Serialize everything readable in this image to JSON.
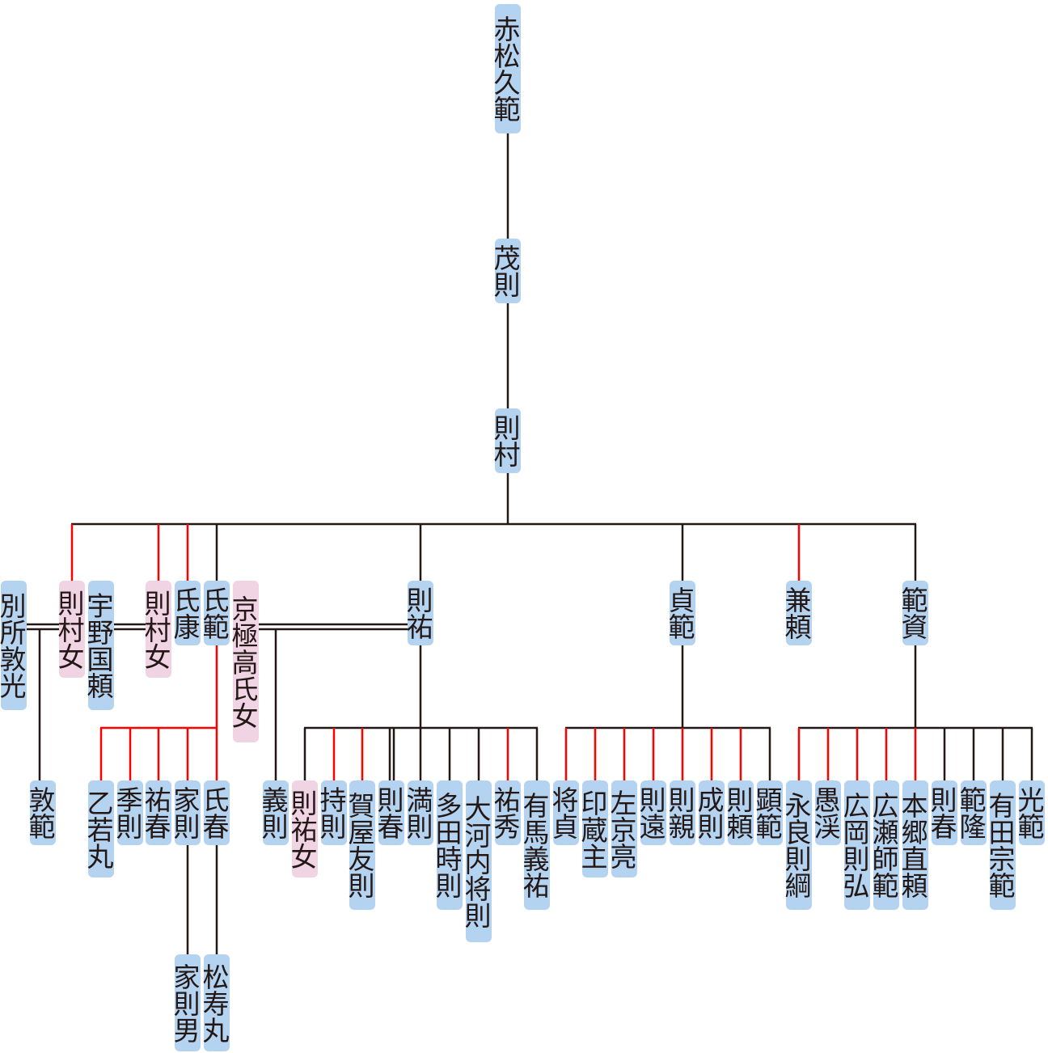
{
  "colors": {
    "male_bg": "#b4d3f0",
    "female_bg": "#f0d4e4",
    "line": "#231815",
    "line_red": "#ff0000"
  },
  "people": [
    {
      "id": "p1",
      "name": "赤松久範",
      "kind": "male"
    },
    {
      "id": "p2",
      "name": "茂則",
      "kind": "male"
    },
    {
      "id": "p3",
      "name": "則村",
      "kind": "male"
    },
    {
      "id": "p4",
      "name": "別所敦光",
      "kind": "male"
    },
    {
      "id": "p5",
      "name": "則村女",
      "kind": "female"
    },
    {
      "id": "p6",
      "name": "宇野国頼",
      "kind": "male"
    },
    {
      "id": "p7",
      "name": "則村女",
      "kind": "female"
    },
    {
      "id": "p8",
      "name": "氏康",
      "kind": "male"
    },
    {
      "id": "p9",
      "name": "氏範",
      "kind": "male"
    },
    {
      "id": "p10",
      "name": "京極高氏女",
      "kind": "female"
    },
    {
      "id": "p11",
      "name": "則祐",
      "kind": "male"
    },
    {
      "id": "p12",
      "name": "貞範",
      "kind": "male"
    },
    {
      "id": "p13",
      "name": "兼頼",
      "kind": "male"
    },
    {
      "id": "p14",
      "name": "範資",
      "kind": "male"
    },
    {
      "id": "p15",
      "name": "敦範",
      "kind": "male"
    },
    {
      "id": "p16",
      "name": "乙若丸",
      "kind": "male"
    },
    {
      "id": "p17",
      "name": "季則",
      "kind": "male"
    },
    {
      "id": "p18",
      "name": "祐春",
      "kind": "male"
    },
    {
      "id": "p19",
      "name": "家則",
      "kind": "male"
    },
    {
      "id": "p20",
      "name": "氏春",
      "kind": "male"
    },
    {
      "id": "p21",
      "name": "義則",
      "kind": "male"
    },
    {
      "id": "p22",
      "name": "則祐女",
      "kind": "female"
    },
    {
      "id": "p23",
      "name": "持則",
      "kind": "male"
    },
    {
      "id": "p24",
      "name": "賀屋友則",
      "kind": "male"
    },
    {
      "id": "p25",
      "name": "則春",
      "kind": "male"
    },
    {
      "id": "p26",
      "name": "満則",
      "kind": "male"
    },
    {
      "id": "p27",
      "name": "多田時則",
      "kind": "male"
    },
    {
      "id": "p28",
      "name": "大河内将則",
      "kind": "male"
    },
    {
      "id": "p29",
      "name": "祐秀",
      "kind": "male"
    },
    {
      "id": "p30",
      "name": "有馬義祐",
      "kind": "male"
    },
    {
      "id": "p31",
      "name": "将貞",
      "kind": "male"
    },
    {
      "id": "p32",
      "name": "印蔵主",
      "kind": "male"
    },
    {
      "id": "p33",
      "name": "左京亮",
      "kind": "male"
    },
    {
      "id": "p34",
      "name": "則遠",
      "kind": "male"
    },
    {
      "id": "p35",
      "name": "則親",
      "kind": "male"
    },
    {
      "id": "p36",
      "name": "成則",
      "kind": "male"
    },
    {
      "id": "p37",
      "name": "則頼",
      "kind": "male"
    },
    {
      "id": "p38",
      "name": "顕範",
      "kind": "male"
    },
    {
      "id": "p39",
      "name": "永良則綱",
      "kind": "male"
    },
    {
      "id": "p40",
      "name": "愚渓",
      "kind": "male"
    },
    {
      "id": "p41",
      "name": "広岡則弘",
      "kind": "male"
    },
    {
      "id": "p42",
      "name": "広瀬師範",
      "kind": "male"
    },
    {
      "id": "p43",
      "name": "本郷直頼",
      "kind": "male"
    },
    {
      "id": "p44",
      "name": "則春",
      "kind": "male"
    },
    {
      "id": "p45",
      "name": "範隆",
      "kind": "male"
    },
    {
      "id": "p46",
      "name": "有田宗範",
      "kind": "male"
    },
    {
      "id": "p47",
      "name": "光範",
      "kind": "male"
    },
    {
      "id": "p48",
      "name": "家則男",
      "kind": "male"
    },
    {
      "id": "p49",
      "name": "松寿丸",
      "kind": "male"
    }
  ]
}
